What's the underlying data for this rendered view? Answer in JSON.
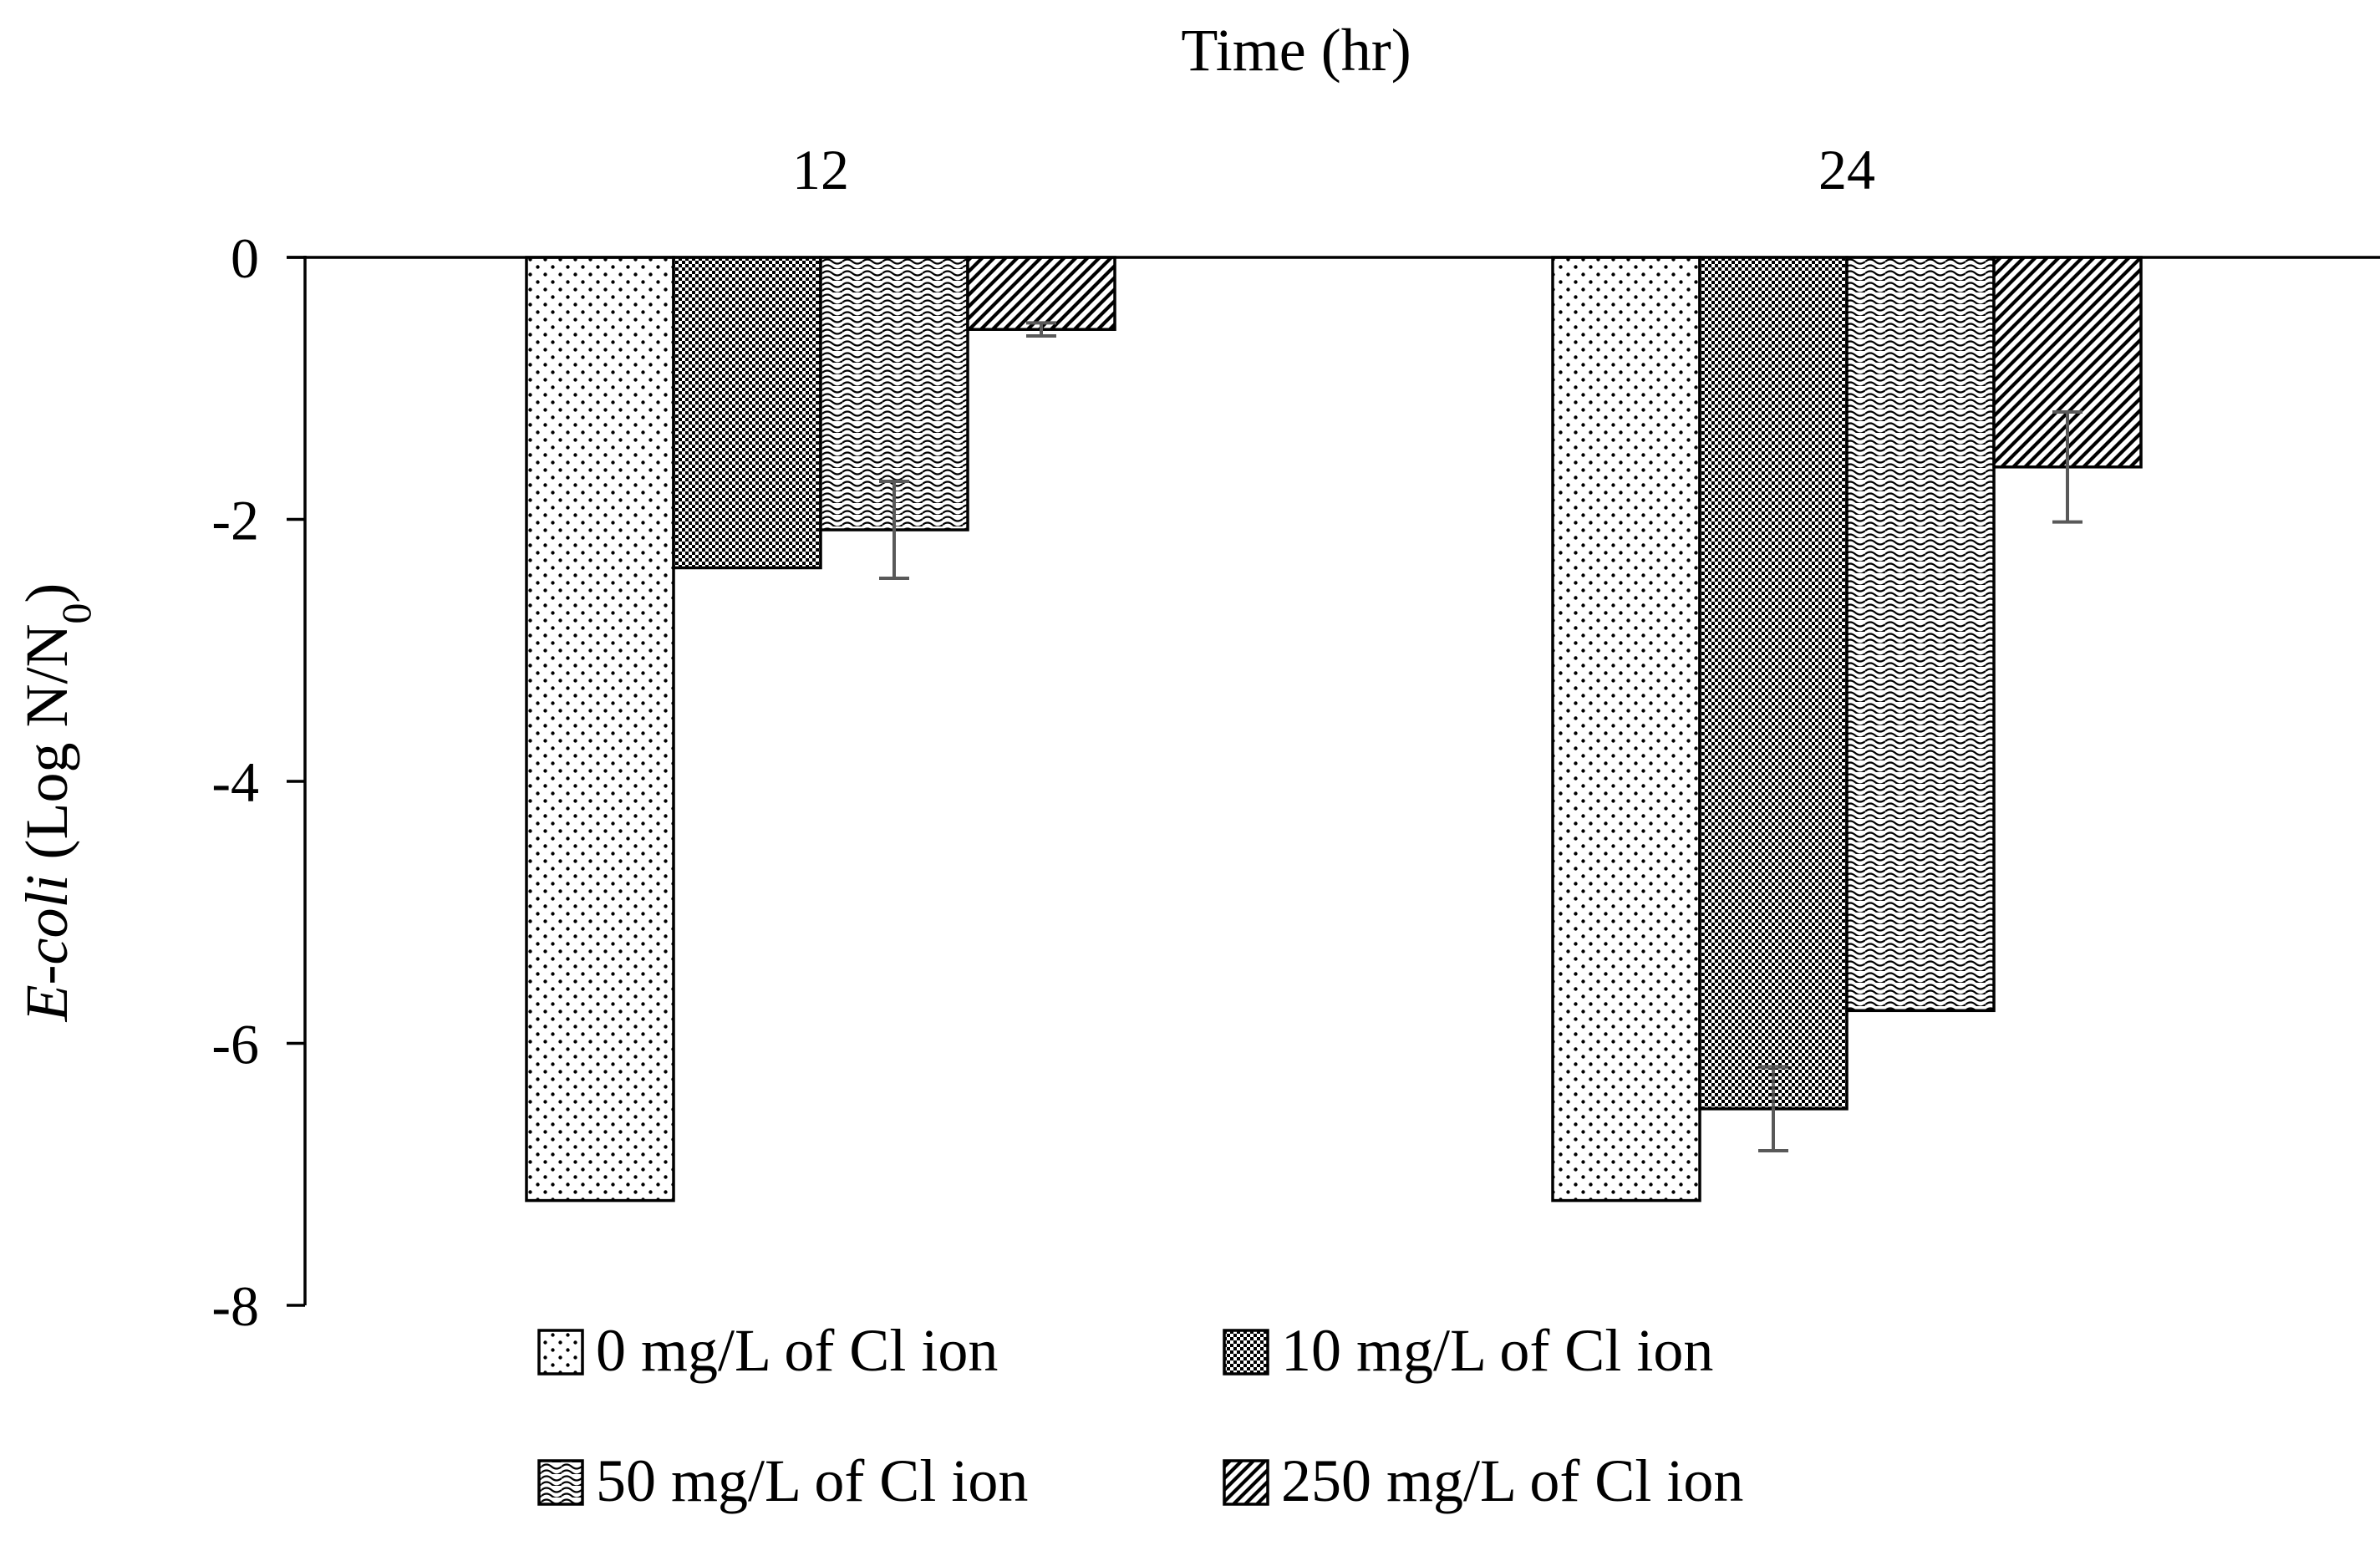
{
  "chart_data": {
    "type": "bar",
    "x_axis_title": "Time (hr)",
    "y_axis_title_italic": "E-coli",
    "y_axis_title_rest": " (Log N/N",
    "y_axis_title_subscript": "0",
    "y_axis_title_close": ")",
    "categories": [
      "12",
      "24"
    ],
    "ylim": [
      -8,
      0
    ],
    "yticks": [
      "0",
      "-2",
      "-4",
      "-6",
      "-8"
    ],
    "ytick_values": [
      0,
      -2,
      -4,
      -6,
      -8
    ],
    "series": [
      {
        "name": "0 mg/L of Cl ion",
        "pattern": "dots",
        "values": [
          -7.2,
          -7.2
        ],
        "errors": [
          0,
          0
        ]
      },
      {
        "name": "10 mg/L of Cl ion",
        "pattern": "checker",
        "values": [
          -2.37,
          -6.5
        ],
        "errors": [
          0,
          0.32
        ]
      },
      {
        "name": "50 mg/L of Cl ion",
        "pattern": "wave",
        "values": [
          -2.08,
          -5.75
        ],
        "errors": [
          0.37,
          0
        ]
      },
      {
        "name": "250 mg/L of Cl ion",
        "pattern": "diag",
        "values": [
          -0.55,
          -1.6
        ],
        "errors": [
          0.05,
          0.42
        ]
      }
    ],
    "legend_position": "bottom",
    "colors": {
      "axis": "#000000",
      "bar_fill": "#ffffff",
      "pattern_ink": "#000000",
      "error_bar": "#595959"
    }
  }
}
